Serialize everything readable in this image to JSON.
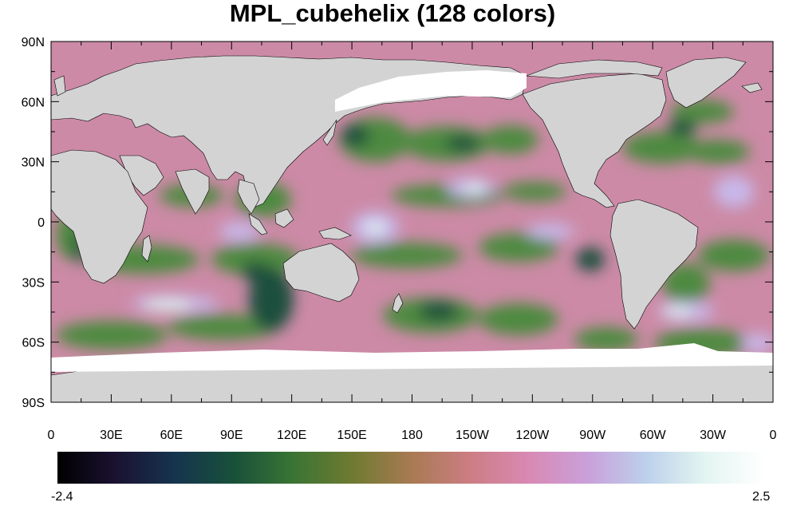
{
  "title": "MPL_cubehelix (128 colors)",
  "lat_labels": [
    "90N",
    "60N",
    "30N",
    "0",
    "30S",
    "60S",
    "90S"
  ],
  "lon_labels": [
    "0",
    "30E",
    "60E",
    "90E",
    "120E",
    "150E",
    "180",
    "150W",
    "120W",
    "90W",
    "60W",
    "30W",
    "0"
  ],
  "colorbar": {
    "min_label": "-2.4",
    "max_label": "2.5",
    "colors": [
      "#000000",
      "#1b1232",
      "#16344e",
      "#18513a",
      "#3a7434",
      "#6e7a31",
      "#a87a52",
      "#cc7d83",
      "#d989b3",
      "#c9a0da",
      "#bdd0eb",
      "#e3f5f1",
      "#ffffff"
    ]
  },
  "map_colors": {
    "land": "#d3d3d3",
    "ice": "#ffffff",
    "ocean_base": "#cc8aa6",
    "ocean_green": "#4d8a40",
    "ocean_dark": "#1f4f3e",
    "ocean_light": "#c8b8ea",
    "ocean_pale": "#dff2f0"
  }
}
